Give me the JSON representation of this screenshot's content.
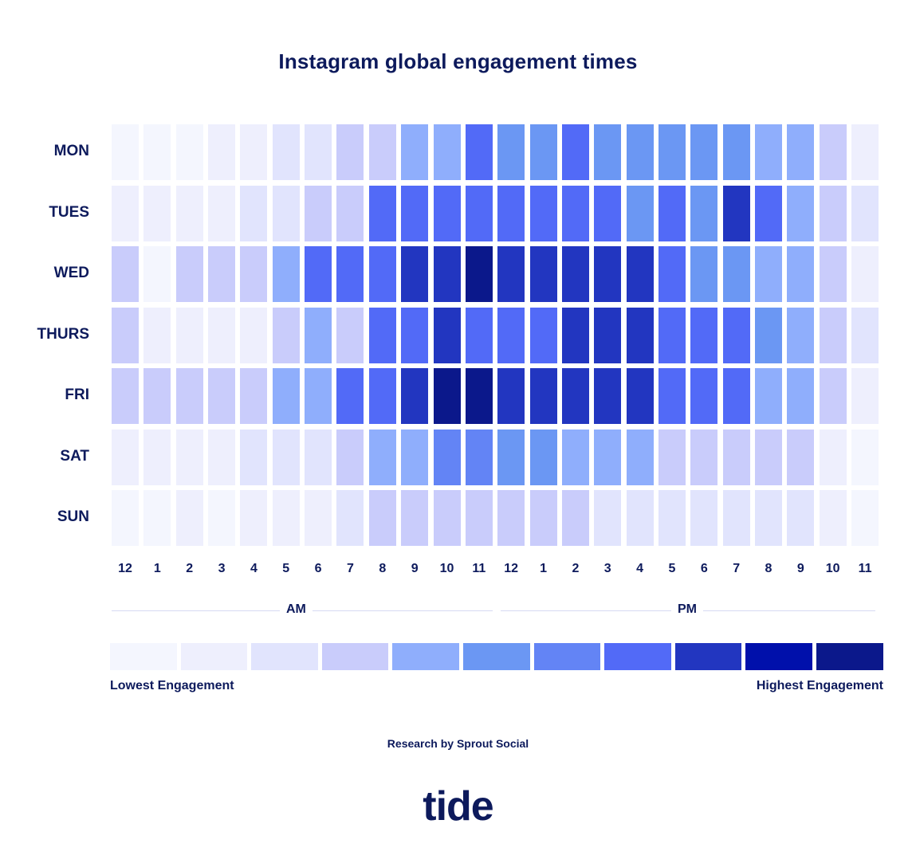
{
  "title": "Instagram global engagement times",
  "days": [
    "MON",
    "TUES",
    "WED",
    "THURS",
    "FRI",
    "SAT",
    "SUN"
  ],
  "hours": [
    "12",
    "1",
    "2",
    "3",
    "4",
    "5",
    "6",
    "7",
    "8",
    "9",
    "10",
    "11",
    "12",
    "1",
    "2",
    "3",
    "4",
    "5",
    "6",
    "7",
    "8",
    "9",
    "10",
    "11"
  ],
  "periods": {
    "am": "AM",
    "pm": "PM"
  },
  "legend": {
    "low_label": "Lowest Engagement",
    "high_label": "Highest Engagement",
    "colors": [
      "#f4f6fe",
      "#eeeffd",
      "#e1e4fd",
      "#c9ccfb",
      "#8faefc",
      "#6b97f3",
      "#6384f5",
      "#526af7",
      "#2236c0",
      "#0010ab",
      "#0b188b"
    ]
  },
  "credit": "Research by Sprout Social",
  "logo": "tide",
  "chart_data": {
    "type": "heatmap",
    "title": "Instagram global engagement times",
    "x": [
      "12 AM",
      "1 AM",
      "2 AM",
      "3 AM",
      "4 AM",
      "5 AM",
      "6 AM",
      "7 AM",
      "8 AM",
      "9 AM",
      "10 AM",
      "11 AM",
      "12 PM",
      "1 PM",
      "2 PM",
      "3 PM",
      "4 PM",
      "5 PM",
      "6 PM",
      "7 PM",
      "8 PM",
      "9 PM",
      "10 PM",
      "11 PM"
    ],
    "y": [
      "MON",
      "TUES",
      "WED",
      "THURS",
      "FRI",
      "SAT",
      "SUN"
    ],
    "scale": {
      "min": 0,
      "max": 10,
      "min_label": "Lowest Engagement",
      "max_label": "Highest Engagement",
      "levels": 11
    },
    "values": [
      [
        0,
        0,
        0,
        1,
        1,
        2,
        2,
        3,
        3,
        4,
        4,
        7,
        5,
        5,
        7,
        5,
        5,
        5,
        5,
        5,
        4,
        4,
        3,
        1
      ],
      [
        1,
        1,
        1,
        1,
        2,
        2,
        3,
        3,
        7,
        7,
        7,
        7,
        7,
        7,
        7,
        7,
        5,
        7,
        5,
        8,
        7,
        4,
        3,
        2
      ],
      [
        3,
        0,
        3,
        3,
        3,
        4,
        7,
        7,
        7,
        8,
        8,
        10,
        8,
        8,
        8,
        8,
        8,
        7,
        5,
        5,
        4,
        4,
        3,
        1
      ],
      [
        3,
        1,
        1,
        1,
        1,
        3,
        4,
        3,
        7,
        7,
        8,
        7,
        7,
        7,
        8,
        8,
        8,
        7,
        7,
        7,
        5,
        4,
        3,
        2
      ],
      [
        3,
        3,
        3,
        3,
        3,
        4,
        4,
        7,
        7,
        8,
        10,
        10,
        8,
        8,
        8,
        8,
        8,
        7,
        7,
        7,
        4,
        4,
        3,
        1
      ],
      [
        1,
        1,
        1,
        1,
        2,
        2,
        2,
        3,
        4,
        4,
        6,
        6,
        5,
        5,
        4,
        4,
        4,
        3,
        3,
        3,
        3,
        3,
        1,
        0
      ],
      [
        0,
        0,
        1,
        0,
        1,
        1,
        1,
        2,
        3,
        3,
        3,
        3,
        3,
        3,
        3,
        2,
        2,
        2,
        2,
        2,
        2,
        2,
        1,
        0
      ]
    ],
    "source": "Research by Sprout Social"
  }
}
